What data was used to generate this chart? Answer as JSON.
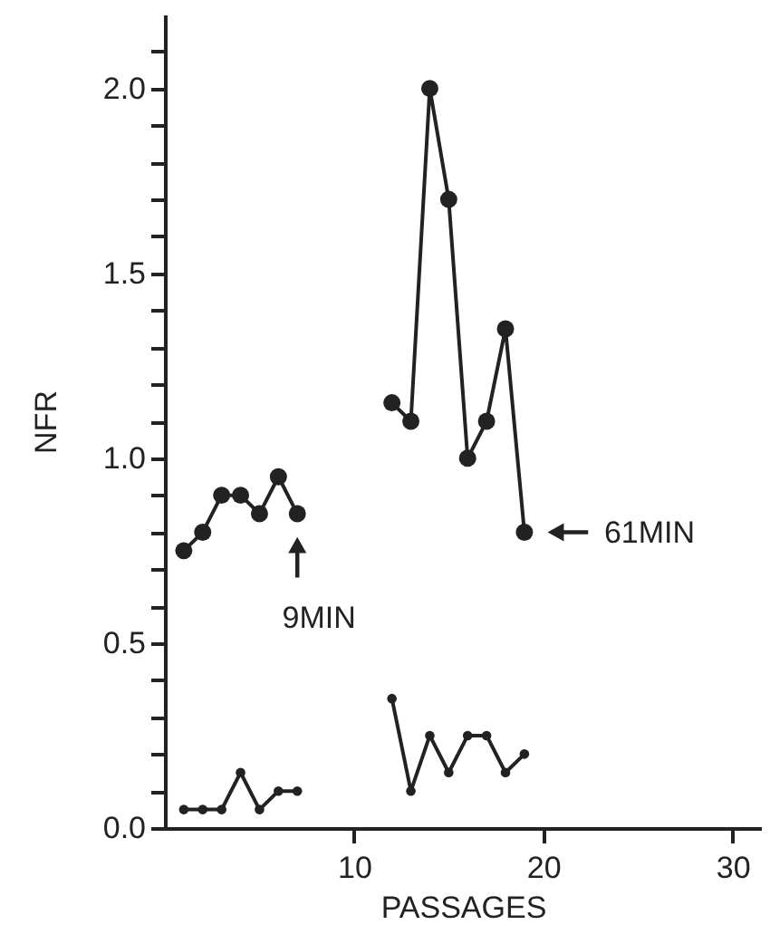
{
  "chart_data": {
    "type": "line",
    "xlabel": "PASSAGES",
    "ylabel": "NFR",
    "series": [
      {
        "color": "#222222",
        "x": [
          1,
          2,
          3,
          4,
          5,
          6,
          7
        ],
        "values": [
          0.75,
          0.8,
          0.9,
          0.9,
          0.85,
          0.95,
          0.85
        ]
      },
      {
        "color": "#222222",
        "x": [
          12,
          13,
          14,
          15,
          16,
          17,
          18,
          19
        ],
        "values": [
          1.15,
          1.1,
          2.0,
          1.7,
          1.0,
          1.1,
          1.35,
          0.8
        ]
      },
      {
        "color": "#222222",
        "x": [
          1,
          2,
          3,
          4,
          5,
          6,
          7
        ],
        "values": [
          0.05,
          0.05,
          0.05,
          0.15,
          0.05,
          0.1,
          0.1
        ]
      },
      {
        "color": "#222222",
        "x": [
          12,
          13,
          14,
          15,
          16,
          17,
          18,
          19
        ],
        "values": [
          0.35,
          0.1,
          0.25,
          0.15,
          0.25,
          0.25,
          0.15,
          0.2
        ]
      }
    ],
    "xlim": [
      0,
      31.5
    ],
    "xticks": [
      10,
      20,
      30
    ],
    "ylim": [
      0,
      2.2
    ],
    "yticks": [
      {
        "value": 0,
        "label": "0.0"
      },
      {
        "value": 0.1,
        "label": null
      },
      {
        "value": 0.2,
        "label": null
      },
      {
        "value": 0.3,
        "label": null
      },
      {
        "value": 0.4,
        "label": null
      },
      {
        "value": 0.5,
        "label": "0.5"
      },
      {
        "value": 0.6,
        "label": null
      },
      {
        "value": 0.7,
        "label": null
      },
      {
        "value": 0.8,
        "label": null
      },
      {
        "value": 0.9,
        "label": null
      },
      {
        "value": 1,
        "label": "1.0"
      },
      {
        "value": 1.1,
        "label": null
      },
      {
        "value": 1.2,
        "label": null
      },
      {
        "value": 1.3,
        "label": null
      },
      {
        "value": 1.4,
        "label": null
      },
      {
        "value": 1.5,
        "label": "1.5"
      },
      {
        "value": 1.6,
        "label": null
      },
      {
        "value": 1.7,
        "label": null
      },
      {
        "value": 1.8,
        "label": null
      },
      {
        "value": 1.9,
        "label": null
      },
      {
        "value": 2,
        "label": "2.0"
      },
      {
        "value": 2.1,
        "label": null
      }
    ],
    "annotations": [
      {
        "text": "9MIN",
        "x": 7,
        "y": 0.85
      },
      {
        "text": "61MIN",
        "x": 19,
        "y": 0.8
      }
    ],
    "marker": "circle",
    "line_style": "solid",
    "grid": false
  }
}
